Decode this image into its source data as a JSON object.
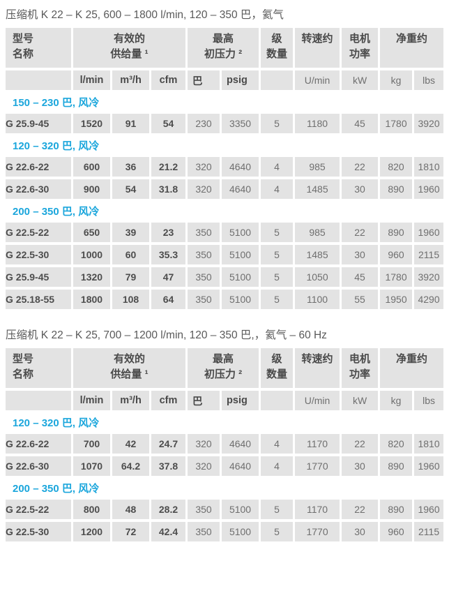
{
  "colors": {
    "accent_blue": "#1ba6dc",
    "cell_background": "#e3e3e3",
    "header_text": "#4a4a4a",
    "value_text": "#6f6f6f",
    "title_text": "#595959",
    "page_background": "#ffffff"
  },
  "tables": [
    {
      "title": "压缩机 K 22 – K 25, 600 – 1800 l/min, 120 – 350 巴，氦气",
      "header": {
        "row1": [
          {
            "key": "model",
            "colspan": 1,
            "lines": [
              "型号",
              "名称"
            ]
          },
          {
            "key": "effective-supply",
            "colspan": 3,
            "lines": [
              "有效的",
              "供给量 ¹"
            ]
          },
          {
            "key": "max-initial-pressure",
            "colspan": 2,
            "lines": [
              "最高",
              "初压力 ²"
            ]
          },
          {
            "key": "stages",
            "colspan": 1,
            "lines": [
              "级",
              "数量"
            ]
          },
          {
            "key": "speed",
            "colspan": 1,
            "lines": [
              "转速约"
            ]
          },
          {
            "key": "motor-power",
            "colspan": 1,
            "lines": [
              "电机",
              "功率"
            ]
          },
          {
            "key": "net-weight",
            "colspan": 2,
            "lines": [
              "净重约"
            ]
          }
        ],
        "row2": [
          "",
          "l/min",
          "m³/h",
          "cfm",
          "巴",
          "psig",
          "",
          "U/min",
          "kW",
          "kg",
          "lbs"
        ]
      },
      "sections": [
        {
          "heading": "150 – 230 巴, 风冷",
          "rows": [
            {
              "model": "G 25.9-45",
              "values": [
                "1520",
                "91",
                "54",
                "230",
                "3350",
                "5",
                "1180",
                "45",
                "1780",
                "3920"
              ]
            }
          ]
        },
        {
          "heading": "120 – 320 巴, 风冷",
          "rows": [
            {
              "model": "G 22.6-22",
              "values": [
                "600",
                "36",
                "21.2",
                "320",
                "4640",
                "4",
                "985",
                "22",
                "820",
                "1810"
              ]
            },
            {
              "model": "G 22.6-30",
              "values": [
                "900",
                "54",
                "31.8",
                "320",
                "4640",
                "4",
                "1485",
                "30",
                "890",
                "1960"
              ]
            }
          ]
        },
        {
          "heading": "200 – 350 巴, 风冷",
          "rows": [
            {
              "model": "G 22.5-22",
              "values": [
                "650",
                "39",
                "23",
                "350",
                "5100",
                "5",
                "985",
                "22",
                "890",
                "1960"
              ]
            },
            {
              "model": "G 22.5-30",
              "values": [
                "1000",
                "60",
                "35.3",
                "350",
                "5100",
                "5",
                "1485",
                "30",
                "960",
                "2115"
              ]
            },
            {
              "model": "G 25.9-45",
              "values": [
                "1320",
                "79",
                "47",
                "350",
                "5100",
                "5",
                "1050",
                "45",
                "1780",
                "3920"
              ]
            },
            {
              "model": "G 25.18-55",
              "values": [
                "1800",
                "108",
                "64",
                "350",
                "5100",
                "5",
                "1100",
                "55",
                "1950",
                "4290"
              ]
            }
          ]
        }
      ]
    },
    {
      "title": "压缩机 K 22 – K 25, 700 – 1200 l/min, 120 – 350 巴,，氦气 – 60 Hz",
      "header": {
        "row1": [
          {
            "key": "model",
            "colspan": 1,
            "lines": [
              "型号",
              "名称"
            ]
          },
          {
            "key": "effective-supply",
            "colspan": 3,
            "lines": [
              "有效的",
              "供给量 ¹"
            ]
          },
          {
            "key": "max-initial-pressure",
            "colspan": 2,
            "lines": [
              "最高",
              "初压力 ²"
            ]
          },
          {
            "key": "stages",
            "colspan": 1,
            "lines": [
              "级",
              "数量"
            ]
          },
          {
            "key": "speed",
            "colspan": 1,
            "lines": [
              "转速约"
            ]
          },
          {
            "key": "motor-power",
            "colspan": 1,
            "lines": [
              "电机",
              "功率"
            ]
          },
          {
            "key": "net-weight",
            "colspan": 2,
            "lines": [
              "净重约"
            ]
          }
        ],
        "row2": [
          "",
          "l/min",
          "m³/h",
          "cfm",
          "巴",
          "psig",
          "",
          "U/min",
          "kW",
          "kg",
          "lbs"
        ]
      },
      "sections": [
        {
          "heading": "120 – 320 巴, 风冷",
          "rows": [
            {
              "model": "G 22.6-22",
              "values": [
                "700",
                "42",
                "24.7",
                "320",
                "4640",
                "4",
                "1170",
                "22",
                "820",
                "1810"
              ]
            },
            {
              "model": "G 22.6-30",
              "values": [
                "1070",
                "64.2",
                "37.8",
                "320",
                "4640",
                "4",
                "1770",
                "30",
                "890",
                "1960"
              ]
            }
          ]
        },
        {
          "heading": "200 – 350 巴, 风冷",
          "rows": [
            {
              "model": "G 22.5-22",
              "values": [
                "800",
                "48",
                "28.2",
                "350",
                "5100",
                "5",
                "1170",
                "22",
                "890",
                "1960"
              ]
            },
            {
              "model": "G 22.5-30",
              "values": [
                "1200",
                "72",
                "42.4",
                "350",
                "5100",
                "5",
                "1770",
                "30",
                "960",
                "2115"
              ]
            }
          ]
        }
      ]
    }
  ]
}
